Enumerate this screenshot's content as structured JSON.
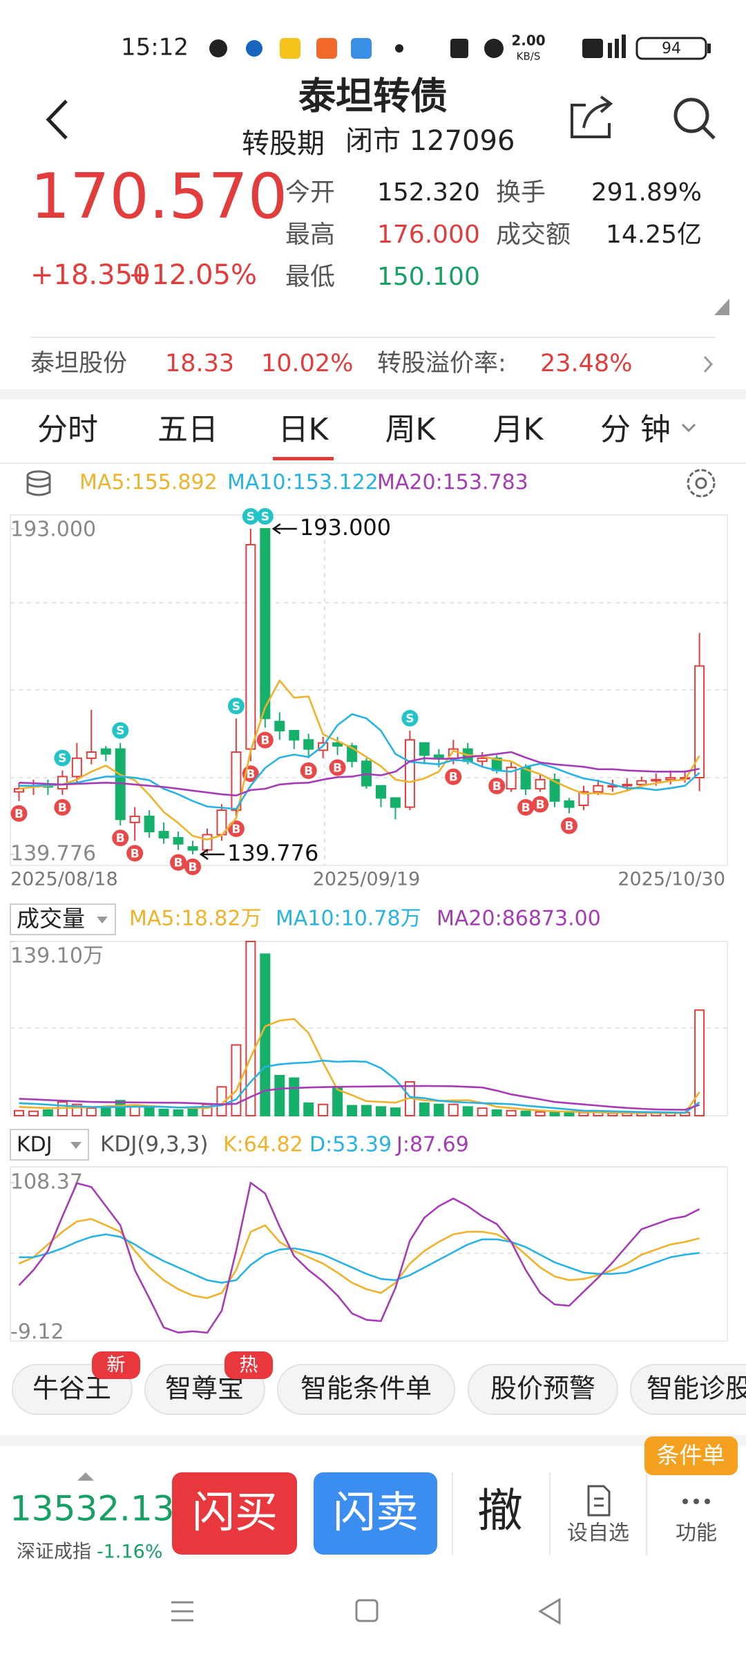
{
  "status_bar": {
    "time": "15:12",
    "net_speed_value": "2.00",
    "net_speed_unit": "KB/S",
    "battery": "94"
  },
  "header": {
    "title": "泰坦转债",
    "status": "转股期",
    "market": "闭市 127096"
  },
  "quote": {
    "price": "170.570",
    "change": "+18.350",
    "change_pct": "+12.05%",
    "fields": [
      {
        "label": "今开",
        "value": "152.320"
      },
      {
        "label": "最高",
        "value": "176.000"
      },
      {
        "label": "最低",
        "value": "150.100"
      },
      {
        "label": "换手",
        "value": "291.89%"
      },
      {
        "label": "成交额",
        "value": "14.25亿"
      }
    ]
  },
  "underlying": {
    "name": "泰坦股份",
    "price": "18.33",
    "change_pct": "10.02%",
    "premium_label": "转股溢价率:",
    "premium": "23.48%"
  },
  "tabs": [
    "分时",
    "五日",
    "日K",
    "周K",
    "月K",
    "分 钟"
  ],
  "active_tab_index": 2,
  "chart_data": [
    {
      "type": "candlestick",
      "categories": [
        "2025/08/18",
        null,
        null,
        null,
        null,
        null,
        null,
        null,
        null,
        null,
        null,
        null,
        null,
        null,
        null,
        null,
        null,
        null,
        null,
        null,
        null,
        null,
        null,
        null,
        "2025/09/19",
        null,
        null,
        null,
        null,
        null,
        null,
        null,
        null,
        null,
        null,
        null,
        null,
        null,
        null,
        null,
        null,
        null,
        null,
        null,
        null,
        null,
        null,
        "2025/10/30"
      ],
      "open": [
        150.0,
        150.8,
        151.2,
        150.5,
        152.5,
        155.5,
        157,
        157,
        145,
        146,
        143.5,
        142.5,
        141,
        140.5,
        143,
        147,
        157,
        193,
        161.5,
        160,
        158.5,
        156.8,
        158,
        157.5,
        155,
        151,
        149,
        147.5,
        158,
        156,
        155.5,
        157,
        155,
        155.5,
        150.5,
        154,
        150.5,
        152,
        148.5,
        147.8,
        150,
        151,
        151,
        151.2,
        151.8,
        152,
        152.3,
        152.32
      ],
      "high": [
        151.5,
        152,
        152,
        153.5,
        158,
        163.4,
        157.5,
        158,
        147.5,
        147,
        145,
        143.5,
        142,
        144,
        148,
        162,
        193,
        193,
        163,
        160,
        159.5,
        159,
        159,
        158,
        155.5,
        150.5,
        149,
        160,
        158,
        157,
        158.5,
        158,
        156.5,
        156,
        155,
        154.5,
        153,
        153,
        149,
        151,
        152,
        152,
        152.2,
        152.5,
        153,
        153.5,
        153.5,
        176
      ],
      "low": [
        148.5,
        149.5,
        149.5,
        149.5,
        151.5,
        154.5,
        155,
        144.5,
        142,
        142.5,
        141.5,
        140.5,
        139.776,
        140,
        142,
        146,
        155,
        160.5,
        158.5,
        157,
        155.5,
        155.5,
        156,
        154,
        150.5,
        147.5,
        145.5,
        147,
        154.5,
        154,
        154.5,
        154.5,
        154,
        153,
        150,
        149.5,
        150,
        147.5,
        146.5,
        147,
        149.5,
        150,
        150.2,
        150.8,
        151,
        151.2,
        151.5,
        150.1
      ],
      "close": [
        150.5,
        151,
        150.8,
        152.5,
        155.5,
        156.5,
        156.2,
        145.5,
        146,
        143.5,
        142.5,
        141.5,
        140.5,
        143,
        147,
        156.5,
        190.4,
        162,
        160,
        158.5,
        157,
        158,
        157.5,
        155,
        151,
        149,
        147.5,
        158.5,
        156,
        155.5,
        157,
        155,
        155.5,
        153.5,
        154,
        150.5,
        152,
        148.5,
        147.5,
        150,
        151,
        151,
        151.2,
        151.8,
        152,
        152.3,
        152.3,
        170.57
      ],
      "up_color": "#e23c3c",
      "down_color": "#15b06a",
      "ylim": [
        137.97,
        195.26
      ],
      "yticks": [
        {
          "value": 193,
          "label": "193.000"
        },
        {
          "value": 139.776,
          "label": "139.776"
        }
      ],
      "series": [
        {
          "name": "MA5:155.892",
          "color": "#eeb22b",
          "values": [
            150.5,
            150.8,
            151,
            151.2,
            152,
            153.3,
            154.3,
            152.8,
            151.9,
            149.5,
            146.7,
            144.9,
            142.8,
            142.2,
            142.9,
            145.7,
            156.7,
            163.8,
            168.2,
            165.4,
            165.6,
            159.4,
            158.3,
            157.2,
            155.7,
            154.2,
            152,
            151.6,
            152.2,
            153.3,
            156.7,
            156,
            155.8,
            155.3,
            155,
            153.7,
            152.9,
            151.7,
            150.6,
            149.7,
            149.8,
            149.6,
            150.2,
            151,
            151.4,
            151.8,
            152,
            155.892
          ]
        },
        {
          "name": "MA10:153.122",
          "color": "#27b3e2",
          "values": [
            151,
            151,
            151.1,
            151.2,
            151.5,
            152,
            152.5,
            152.5,
            152.3,
            151.9,
            150.5,
            149.6,
            148.5,
            147.6,
            147.4,
            147.2,
            151,
            153.9,
            155.6,
            156.1,
            155.7,
            157.5,
            160.9,
            162.7,
            162,
            160,
            156.2,
            154.9,
            154.7,
            154.5,
            155.2,
            155.1,
            154.1,
            153.5,
            153.3,
            154.1,
            154.6,
            153.9,
            153,
            152.2,
            151.8,
            151.2,
            150.6,
            150.6,
            150.3,
            150.6,
            151,
            153.122
          ]
        },
        {
          "name": "MA20:153.783",
          "color": "#a63bb6",
          "values": [
            151.5,
            151.4,
            151.3,
            151.2,
            151.3,
            151.4,
            151.5,
            151.4,
            151.2,
            151,
            150.8,
            150.5,
            150.2,
            149.9,
            149.6,
            149.4,
            150.3,
            150.5,
            151.2,
            151.4,
            151.5,
            152,
            152.4,
            152.5,
            152.9,
            152.7,
            153.3,
            155,
            155.5,
            155.4,
            155.4,
            155.7,
            155.9,
            156.2,
            156.5,
            155.6,
            154.8,
            154.5,
            154.3,
            154.1,
            153.7,
            153.7,
            153.5,
            153.4,
            153.3,
            153.3,
            153.3,
            153.783
          ]
        }
      ],
      "signal_colors": {
        "B": "#e84848",
        "S": "#22c4c6"
      },
      "signals": [
        {
          "category_index": 3,
          "side": "S"
        },
        {
          "category_index": 7,
          "side": "S"
        },
        {
          "category_index": 15,
          "side": "S"
        },
        {
          "category_index": 16,
          "side": "S"
        },
        {
          "category_index": 17,
          "side": "S"
        },
        {
          "category_index": 27,
          "side": "S"
        },
        {
          "category_index": 0,
          "side": "B"
        },
        {
          "category_index": 3,
          "side": "B"
        },
        {
          "category_index": 7,
          "side": "B"
        },
        {
          "category_index": 8,
          "side": "B"
        },
        {
          "category_index": 11,
          "side": "B"
        },
        {
          "category_index": 12,
          "side": "B"
        },
        {
          "category_index": 15,
          "side": "B"
        },
        {
          "category_index": 16,
          "side": "B"
        },
        {
          "category_index": 17,
          "side": "B"
        },
        {
          "category_index": 20,
          "side": "B"
        },
        {
          "category_index": 22,
          "side": "B"
        },
        {
          "category_index": 30,
          "side": "B"
        },
        {
          "category_index": 33,
          "side": "B"
        },
        {
          "category_index": 35,
          "side": "B"
        },
        {
          "category_index": 36,
          "side": "B"
        },
        {
          "category_index": 38,
          "side": "B"
        }
      ],
      "annotations": [
        {
          "category_index": 17,
          "value": 193,
          "text": "193.000"
        },
        {
          "category_index": 12,
          "value": 139.776,
          "text": "139.776"
        }
      ]
    },
    {
      "type": "bar",
      "selector": "成交量",
      "values": [
        40000,
        35000,
        45000,
        110000,
        90000,
        60000,
        70000,
        120000,
        80000,
        60000,
        50000,
        45000,
        55000,
        90000,
        230000,
        565000,
        1391000,
        1290000,
        320000,
        300000,
        100000,
        90000,
        230000,
        80000,
        80000,
        70000,
        60000,
        270000,
        100000,
        90000,
        90000,
        70000,
        60000,
        45000,
        40000,
        35000,
        30000,
        30000,
        25000,
        25000,
        25000,
        20000,
        20000,
        20000,
        20000,
        20000,
        25000,
        843000
      ],
      "ylim": [
        0,
        1391000
      ],
      "yticks": [
        {
          "value": 1391000,
          "label": "139.10万"
        }
      ],
      "series": [
        {
          "name": "MA5:18.82万",
          "color": "#eeb22b",
          "values": [
            70000,
            65000,
            60000,
            62000,
            64000,
            68000,
            75000,
            79000,
            86000,
            78000,
            72000,
            65000,
            62000,
            60000,
            94000,
            198000,
            466000,
            713000,
            759000,
            773000,
            660000,
            425000,
            208000,
            164000,
            116000,
            110000,
            104000,
            142000,
            122000,
            118000,
            122000,
            124000,
            102000,
            71000,
            61000,
            50000,
            41000,
            35000,
            32000,
            29000,
            27000,
            25000,
            22000,
            22000,
            21000,
            21000,
            21000,
            188200
          ]
        },
        {
          "name": "MA10:10.78万",
          "color": "#27b3e2",
          "values": [
            100000,
            95000,
            88000,
            80000,
            75000,
            70000,
            68000,
            69000,
            71000,
            72000,
            70000,
            65000,
            68000,
            72000,
            82000,
            130000,
            270000,
            390000,
            410000,
            420000,
            425000,
            440000,
            430000,
            435000,
            430000,
            380000,
            290000,
            150000,
            140000,
            120000,
            110000,
            105000,
            100000,
            96000,
            92000,
            80000,
            70000,
            60000,
            50000,
            40000,
            38000,
            35000,
            32000,
            29000,
            28000,
            26000,
            24000,
            107800
          ]
        },
        {
          "name": "MA20:86873.00",
          "color": "#a63bb6",
          "values": [
            135000,
            130000,
            125000,
            120000,
            115000,
            110000,
            108000,
            107000,
            106000,
            105000,
            104000,
            103000,
            100000,
            95000,
            90000,
            95000,
            150000,
            200000,
            215000,
            220000,
            225000,
            228000,
            230000,
            232000,
            233000,
            234000,
            235000,
            236000,
            237000,
            236000,
            235000,
            230000,
            225000,
            200000,
            170000,
            150000,
            130000,
            110000,
            100000,
            90000,
            80000,
            70000,
            62000,
            55000,
            50000,
            48000,
            47000,
            86873
          ]
        }
      ]
    },
    {
      "type": "line",
      "selector": "KDJ",
      "indicator": "KDJ(9,3,3)",
      "ylim": [
        -15.62,
        120.82
      ],
      "yticks": [
        108.37,
        -9.12
      ],
      "series": [
        {
          "name": "K:64.82",
          "color": "#eeb22b",
          "values": [
            45,
            50,
            60,
            70,
            78,
            80,
            75,
            70,
            55,
            42,
            32,
            25,
            20,
            18,
            22,
            40,
            70,
            75,
            62,
            55,
            50,
            45,
            38,
            30,
            25,
            22,
            30,
            45,
            55,
            62,
            68,
            70,
            70,
            68,
            62,
            52,
            42,
            35,
            32,
            33,
            36,
            40,
            45,
            52,
            56,
            60,
            62,
            64.82
          ]
        },
        {
          "name": "D:53.39",
          "color": "#27b3e2",
          "values": [
            50,
            50,
            53,
            57,
            62,
            66,
            68,
            66,
            60,
            53,
            47,
            42,
            37,
            32,
            30,
            32,
            44,
            52,
            56,
            57,
            55,
            52,
            47,
            42,
            37,
            33,
            32,
            36,
            42,
            48,
            54,
            60,
            64,
            64,
            62,
            58,
            52,
            46,
            42,
            38,
            37,
            37,
            38,
            42,
            46,
            50,
            52,
            53.39
          ]
        },
        {
          "name": "J:87.69",
          "color": "#a63bb6",
          "values": [
            28,
            40,
            55,
            82,
            108,
            105,
            90,
            75,
            40,
            18,
            -5,
            -9,
            -8,
            -9.12,
            8,
            55,
            108.37,
            100,
            74,
            51,
            40,
            31,
            20,
            6,
            1,
            0,
            26,
            63,
            81,
            90,
            96,
            90,
            82,
            76,
            62,
            40,
            22,
            13,
            12,
            23,
            34,
            46,
            59,
            72,
            76,
            80,
            82,
            87.69
          ]
        }
      ]
    }
  ],
  "feature_chips": [
    {
      "label": "牛谷王",
      "badge": "新"
    },
    {
      "label": "智尊宝",
      "badge": "热"
    },
    {
      "label": "智能条件单"
    },
    {
      "label": "股价预警"
    },
    {
      "label": "智能诊股"
    }
  ],
  "bottom_bar": {
    "index_value": "13532.13",
    "index_name": "深证成指",
    "index_change": "-1.16%",
    "buy": "闪买",
    "sell": "闪卖",
    "cancel": "撤",
    "watchlist": "设自选",
    "more": "功能",
    "badge": "条件单"
  }
}
